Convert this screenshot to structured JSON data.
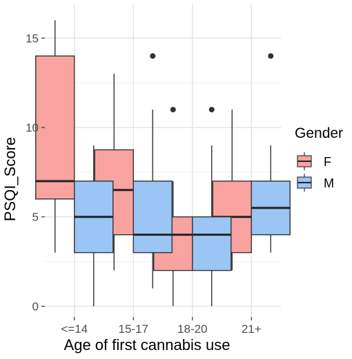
{
  "chart_data": {
    "type": "boxplot",
    "xlabel": "Age of first cannabis use",
    "ylabel": "PSQI_Score",
    "categories": [
      "<=14",
      "15-17",
      "18-20",
      "21+"
    ],
    "yticks": [
      0,
      5,
      10,
      15
    ],
    "ylim": [
      -0.6,
      16.9
    ],
    "grid": true,
    "legend": {
      "title": "Gender",
      "placement": "right",
      "entries": [
        {
          "label": "F",
          "color": "#F8A3A0"
        },
        {
          "label": "M",
          "color": "#9AC5F4"
        }
      ]
    },
    "series": [
      {
        "name": "F",
        "color": "#F8A3A0",
        "boxes": [
          {
            "category": "<=14",
            "whisker_low": 3,
            "q1": 6,
            "median": 7,
            "q3": 14,
            "whisker_high": 16,
            "outliers": []
          },
          {
            "category": "15-17",
            "whisker_low": 2,
            "q1": 4,
            "median": 6.5,
            "q3": 8.75,
            "whisker_high": 13,
            "outliers": []
          },
          {
            "category": "18-20",
            "whisker_low": 0,
            "q1": 2,
            "median": 4,
            "q3": 5,
            "whisker_high": 7,
            "outliers": [
              11
            ]
          },
          {
            "category": "21+",
            "whisker_low": 2,
            "q1": 3,
            "median": 5,
            "q3": 7,
            "whisker_high": 11,
            "outliers": []
          }
        ]
      },
      {
        "name": "M",
        "color": "#9AC5F4",
        "boxes": [
          {
            "category": "<=14",
            "whisker_low": 0,
            "q1": 3,
            "median": 5,
            "q3": 7,
            "whisker_high": 9,
            "outliers": []
          },
          {
            "category": "15-17",
            "whisker_low": 1,
            "q1": 3,
            "median": 4,
            "q3": 7,
            "whisker_high": 11,
            "outliers": [
              14
            ]
          },
          {
            "category": "18-20",
            "whisker_low": 0,
            "q1": 2,
            "median": 4,
            "q3": 5,
            "whisker_high": 9,
            "outliers": [
              11
            ]
          },
          {
            "category": "21+",
            "whisker_low": 3,
            "q1": 4,
            "median": 5.5,
            "q3": 7,
            "whisker_high": 9,
            "outliers": [
              14
            ]
          }
        ]
      }
    ]
  }
}
